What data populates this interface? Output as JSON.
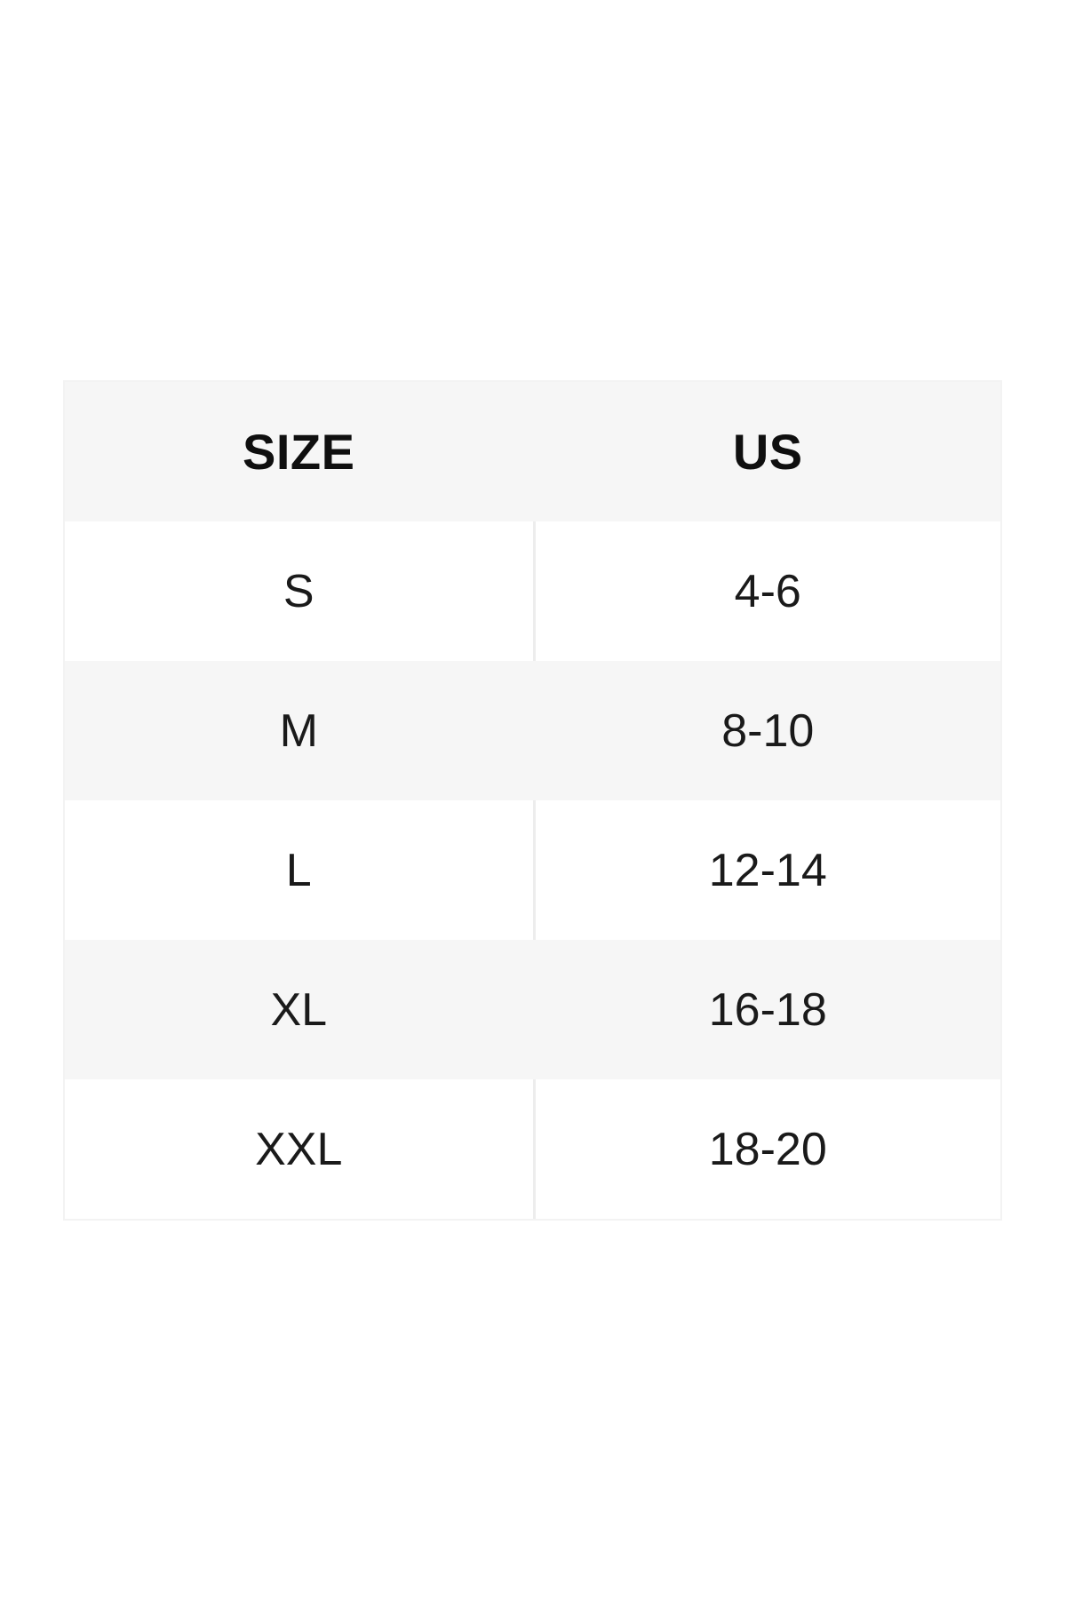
{
  "size_chart": {
    "columns": [
      {
        "label": "SIZE"
      },
      {
        "label": "US"
      }
    ],
    "rows": [
      {
        "size": "S",
        "us": "4-6"
      },
      {
        "size": "M",
        "us": "8-10"
      },
      {
        "size": "L",
        "us": "12-14"
      },
      {
        "size": "XL",
        "us": "16-18"
      },
      {
        "size": "XXL",
        "us": "18-20"
      }
    ],
    "colors": {
      "header_bg": "#f6f6f6",
      "shaded_row_bg": "#f6f6f6",
      "plain_row_bg": "#ffffff",
      "grid_line": "#ededed",
      "text": "#1a1a1a"
    }
  }
}
